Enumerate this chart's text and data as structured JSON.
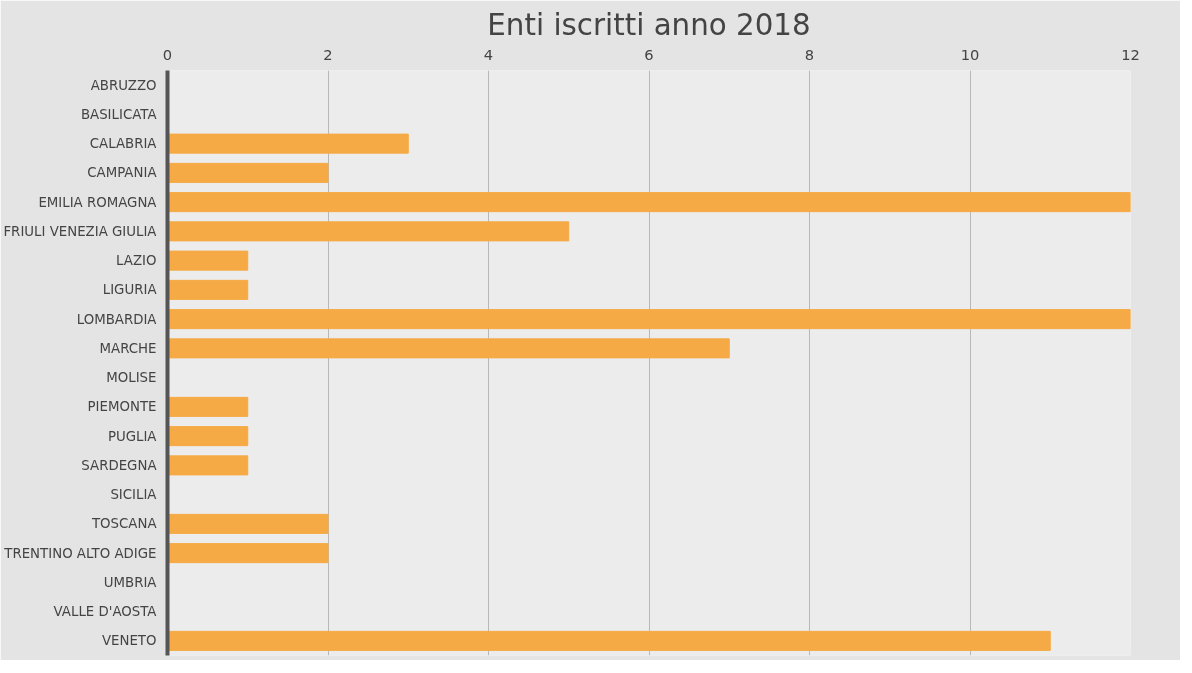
{
  "chart_data": {
    "type": "bar",
    "title": "Enti iscritti anno 2018",
    "orientation": "horizontal",
    "categories": [
      "ABRUZZO",
      "BASILICATA",
      "CALABRIA",
      "CAMPANIA",
      "EMILIA ROMAGNA",
      "FRIULI VENEZIA GIULIA",
      "LAZIO",
      "LIGURIA",
      "LOMBARDIA",
      "MARCHE",
      "MOLISE",
      "PIEMONTE",
      "PUGLIA",
      "SARDEGNA",
      "SICILIA",
      "TOSCANA",
      "TRENTINO ALTO ADIGE",
      "UMBRIA",
      "VALLE D'AOSTA",
      "VENETO"
    ],
    "values": [
      0,
      0,
      3,
      2,
      12,
      5,
      1,
      1,
      12,
      7,
      0,
      1,
      1,
      1,
      0,
      2,
      2,
      0,
      0,
      11
    ],
    "color": "#f5aa45",
    "xlim": [
      0,
      12
    ],
    "xticks": [
      0,
      2,
      4,
      6,
      8,
      10,
      12
    ],
    "grid": "x"
  }
}
